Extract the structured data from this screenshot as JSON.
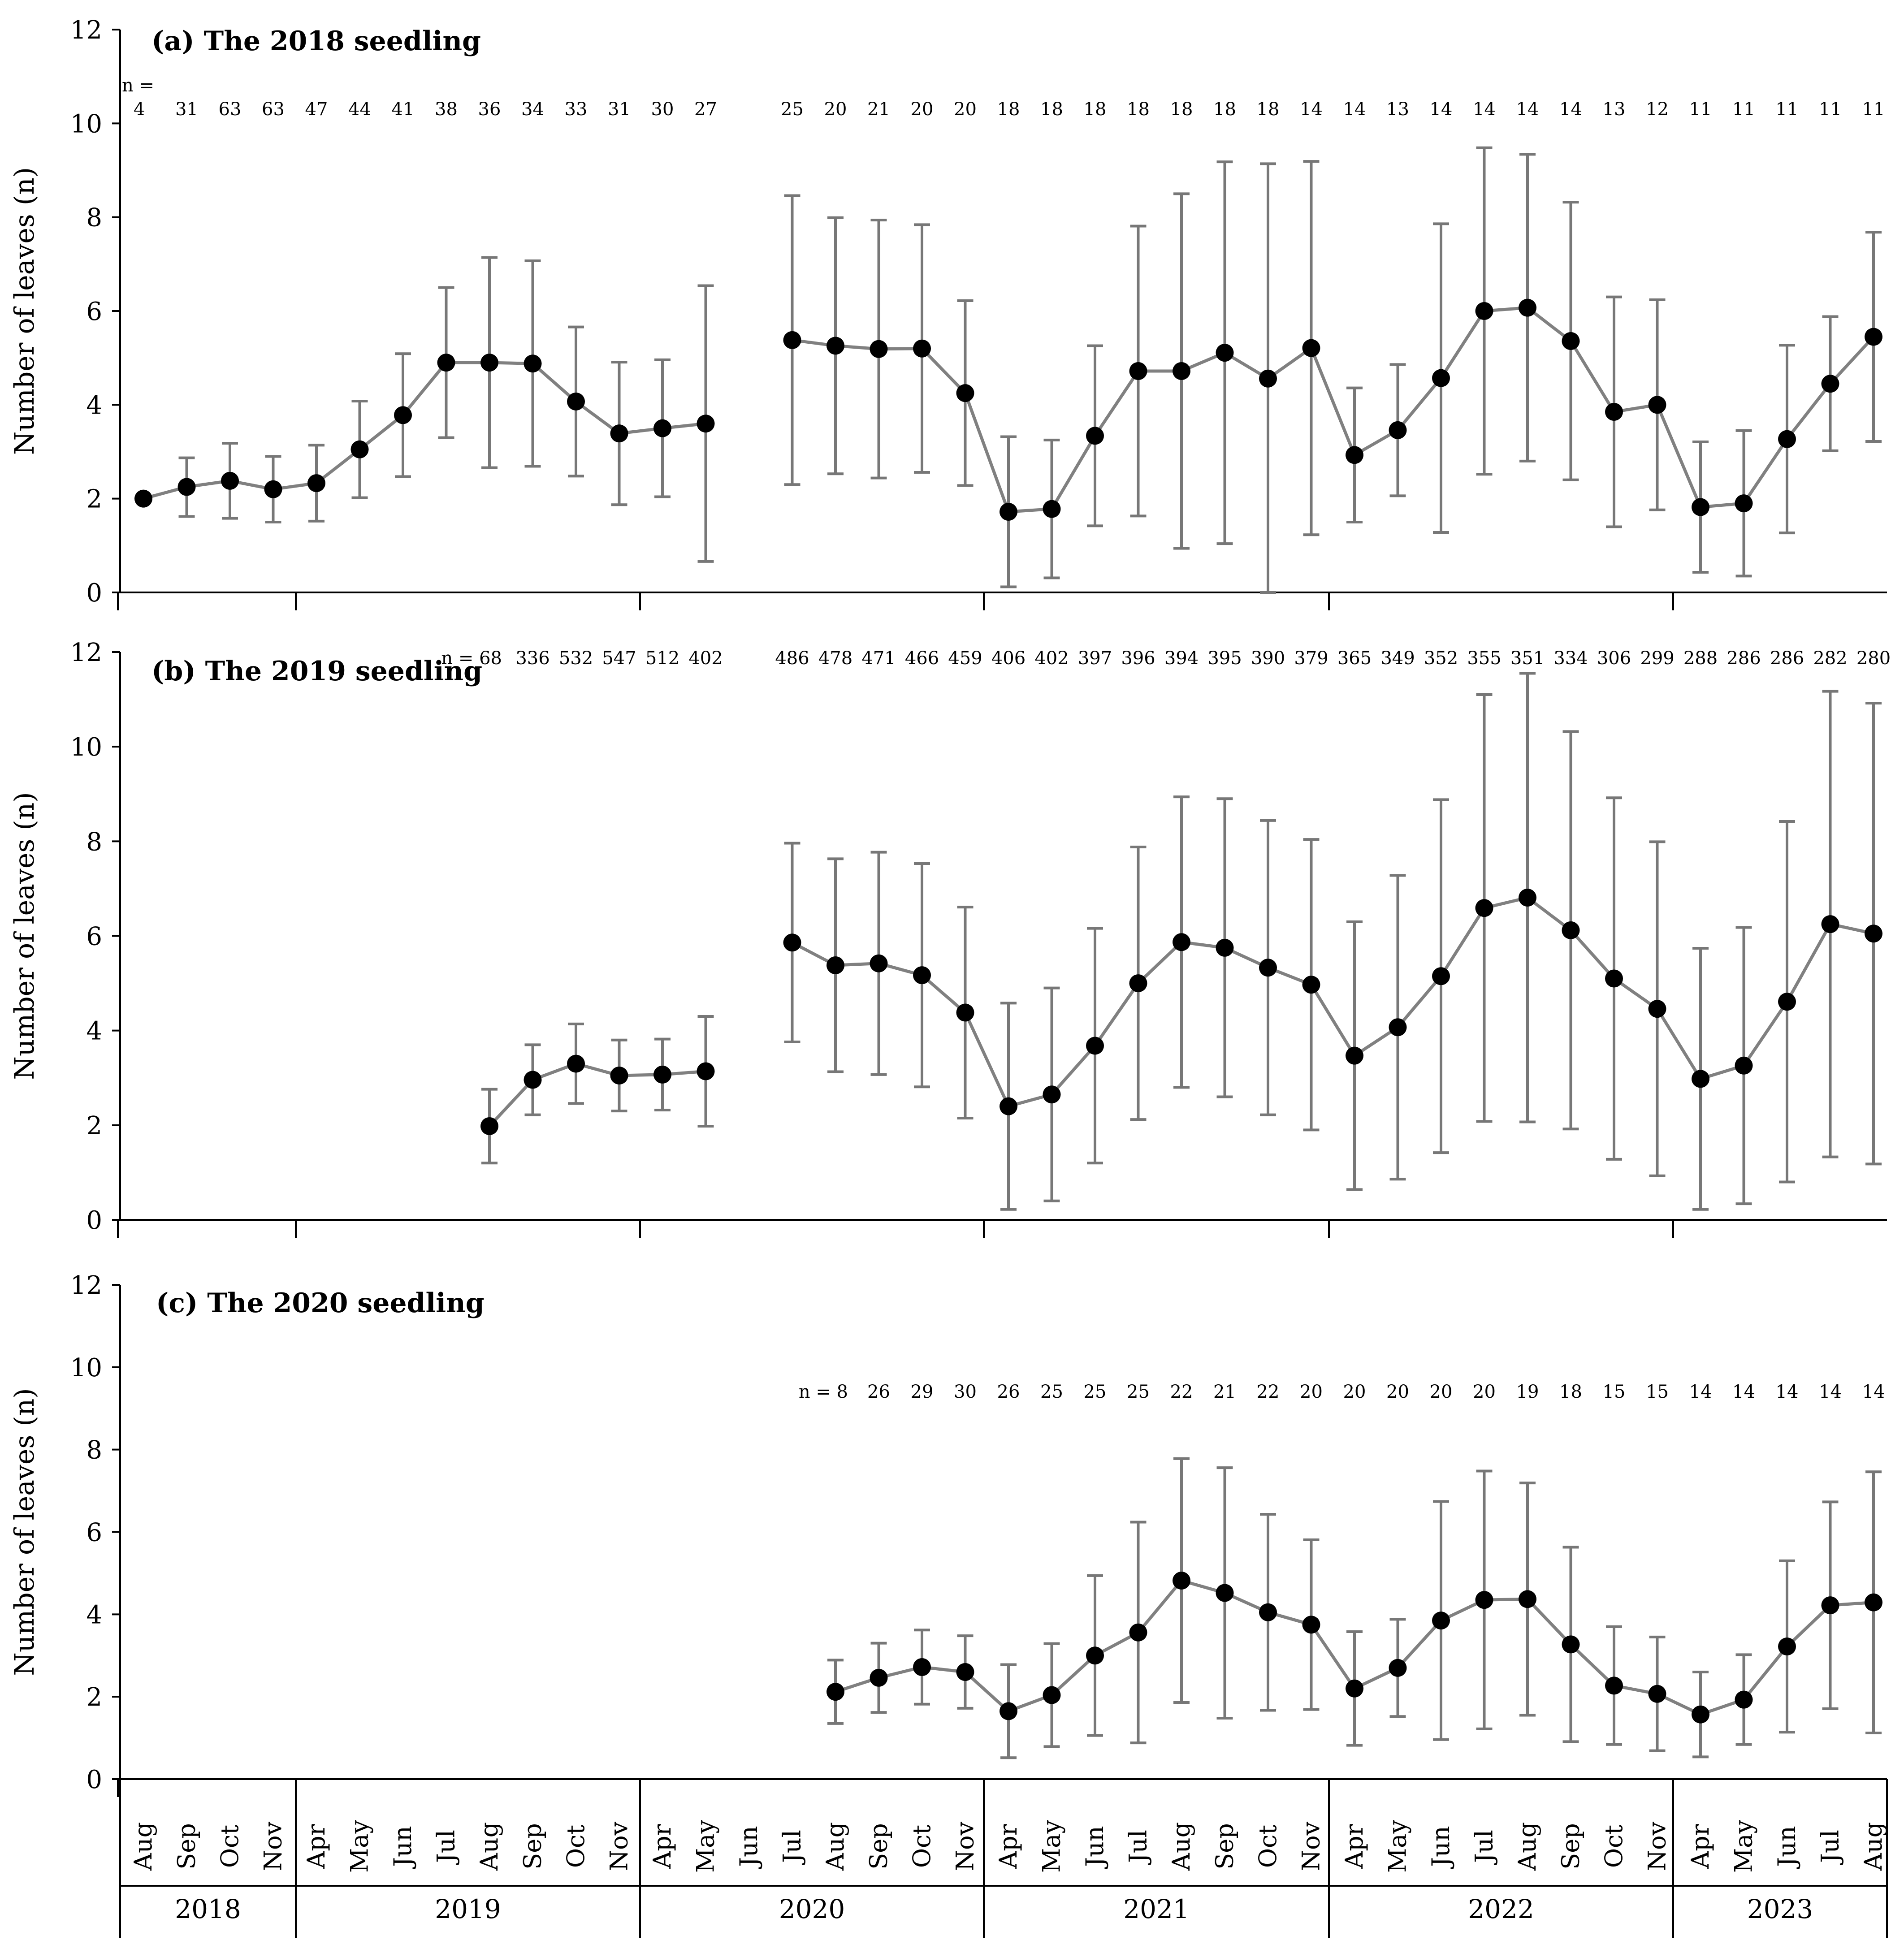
{
  "chart_data": {
    "type": "line",
    "ylabel": "Number of leaves (n)",
    "ylim": [
      0,
      12
    ],
    "yticks": [
      0,
      2,
      4,
      6,
      8,
      10,
      12
    ],
    "x_axis": {
      "months": [
        "Aug",
        "Sep",
        "Oct",
        "Nov",
        "Apr",
        "May",
        "Jun",
        "Jul",
        "Aug",
        "Sep",
        "Oct",
        "Nov",
        "Apr",
        "May",
        "Jun",
        "Jul",
        "Aug",
        "Sep",
        "Oct",
        "Nov",
        "Apr",
        "May",
        "Jun",
        "Jul",
        "Aug",
        "Sep",
        "Oct",
        "Nov",
        "Apr",
        "May",
        "Jun",
        "Jul",
        "Aug",
        "Sep",
        "Oct",
        "Nov",
        "Apr",
        "May",
        "Jun",
        "Jul",
        "Aug"
      ],
      "years": [
        {
          "label": "2018",
          "first": 0,
          "last": 3
        },
        {
          "label": "2019",
          "first": 4,
          "last": 11
        },
        {
          "label": "2020",
          "first": 12,
          "last": 19
        },
        {
          "label": "2021",
          "first": 20,
          "last": 27
        },
        {
          "label": "2022",
          "first": 28,
          "last": 35
        },
        {
          "label": "2023",
          "first": 36,
          "last": 40
        }
      ]
    },
    "panels": [
      {
        "title": "(a) The 2018 seedling",
        "n_prefix": "n =",
        "points": [
          {
            "i": 0,
            "mean": 2.0,
            "lo": 2.0,
            "hi": 2.0,
            "n": "4"
          },
          {
            "i": 1,
            "mean": 2.25,
            "lo": 1.62,
            "hi": 2.87,
            "n": "31"
          },
          {
            "i": 2,
            "mean": 2.38,
            "lo": 1.58,
            "hi": 3.18,
            "n": "63"
          },
          {
            "i": 3,
            "mean": 2.2,
            "lo": 1.5,
            "hi": 2.9,
            "n": "63"
          },
          {
            "i": 4,
            "mean": 2.33,
            "lo": 1.52,
            "hi": 3.14,
            "n": "47"
          },
          {
            "i": 5,
            "mean": 3.05,
            "lo": 2.02,
            "hi": 4.08,
            "n": "44"
          },
          {
            "i": 6,
            "mean": 3.78,
            "lo": 2.47,
            "hi": 5.09,
            "n": "41"
          },
          {
            "i": 7,
            "mean": 4.9,
            "lo": 3.3,
            "hi": 6.5,
            "n": "38"
          },
          {
            "i": 8,
            "mean": 4.9,
            "lo": 2.66,
            "hi": 7.14,
            "n": "36"
          },
          {
            "i": 9,
            "mean": 4.88,
            "lo": 2.69,
            "hi": 7.07,
            "n": "34"
          },
          {
            "i": 10,
            "mean": 4.07,
            "lo": 2.48,
            "hi": 5.66,
            "n": "33"
          },
          {
            "i": 11,
            "mean": 3.39,
            "lo": 1.87,
            "hi": 4.91,
            "n": "31"
          },
          {
            "i": 12,
            "mean": 3.5,
            "lo": 2.04,
            "hi": 4.96,
            "n": "30"
          },
          {
            "i": 13,
            "mean": 3.6,
            "lo": 0.66,
            "hi": 6.54,
            "n": "27"
          },
          {
            "i": 15,
            "mean": 5.38,
            "lo": 2.3,
            "hi": 8.46,
            "n": "25"
          },
          {
            "i": 16,
            "mean": 5.26,
            "lo": 2.53,
            "hi": 7.99,
            "n": "20"
          },
          {
            "i": 17,
            "mean": 5.19,
            "lo": 2.44,
            "hi": 7.94,
            "n": "21"
          },
          {
            "i": 18,
            "mean": 5.2,
            "lo": 2.56,
            "hi": 7.84,
            "n": "20"
          },
          {
            "i": 19,
            "mean": 4.25,
            "lo": 2.28,
            "hi": 6.22,
            "n": "20"
          },
          {
            "i": 20,
            "mean": 1.72,
            "lo": 0.12,
            "hi": 3.32,
            "n": "18"
          },
          {
            "i": 21,
            "mean": 1.78,
            "lo": 0.31,
            "hi": 3.25,
            "n": "18"
          },
          {
            "i": 22,
            "mean": 3.34,
            "lo": 1.42,
            "hi": 5.26,
            "n": "18"
          },
          {
            "i": 23,
            "mean": 4.72,
            "lo": 1.63,
            "hi": 7.81,
            "n": "18"
          },
          {
            "i": 24,
            "mean": 4.72,
            "lo": 0.94,
            "hi": 8.5,
            "n": "18"
          },
          {
            "i": 25,
            "mean": 5.11,
            "lo": 1.04,
            "hi": 9.18,
            "n": "18"
          },
          {
            "i": 26,
            "mean": 4.56,
            "lo": 0.0,
            "hi": 9.14,
            "n": "18"
          },
          {
            "i": 27,
            "mean": 5.21,
            "lo": 1.23,
            "hi": 9.19,
            "n": "14"
          },
          {
            "i": 28,
            "mean": 2.93,
            "lo": 1.5,
            "hi": 4.36,
            "n": "14"
          },
          {
            "i": 29,
            "mean": 3.46,
            "lo": 2.06,
            "hi": 4.86,
            "n": "13"
          },
          {
            "i": 30,
            "mean": 4.57,
            "lo": 1.28,
            "hi": 7.86,
            "n": "14"
          },
          {
            "i": 31,
            "mean": 6.0,
            "lo": 2.52,
            "hi": 9.48,
            "n": "14"
          },
          {
            "i": 32,
            "mean": 6.07,
            "lo": 2.8,
            "hi": 9.34,
            "n": "14"
          },
          {
            "i": 33,
            "mean": 5.36,
            "lo": 2.4,
            "hi": 8.32,
            "n": "14"
          },
          {
            "i": 34,
            "mean": 3.85,
            "lo": 1.4,
            "hi": 6.3,
            "n": "13"
          },
          {
            "i": 35,
            "mean": 4.0,
            "lo": 1.76,
            "hi": 6.24,
            "n": "12"
          },
          {
            "i": 36,
            "mean": 1.82,
            "lo": 0.43,
            "hi": 3.21,
            "n": "11"
          },
          {
            "i": 37,
            "mean": 1.9,
            "lo": 0.35,
            "hi": 3.45,
            "n": "11"
          },
          {
            "i": 38,
            "mean": 3.27,
            "lo": 1.27,
            "hi": 5.27,
            "n": "11"
          },
          {
            "i": 39,
            "mean": 4.45,
            "lo": 3.02,
            "hi": 5.88,
            "n": "11"
          },
          {
            "i": 40,
            "mean": 5.45,
            "lo": 3.22,
            "hi": 7.68,
            "n": "11"
          }
        ]
      },
      {
        "title": "(b) The 2019 seedling",
        "n_prefix": "n =",
        "points": [
          {
            "i": 8,
            "mean": 1.98,
            "lo": 1.2,
            "hi": 2.76,
            "n": "68"
          },
          {
            "i": 9,
            "mean": 2.96,
            "lo": 2.22,
            "hi": 3.7,
            "n": "336"
          },
          {
            "i": 10,
            "mean": 3.3,
            "lo": 2.46,
            "hi": 4.14,
            "n": "532"
          },
          {
            "i": 11,
            "mean": 3.05,
            "lo": 2.3,
            "hi": 3.8,
            "n": "547"
          },
          {
            "i": 12,
            "mean": 3.07,
            "lo": 2.32,
            "hi": 3.82,
            "n": "512"
          },
          {
            "i": 13,
            "mean": 3.14,
            "lo": 1.98,
            "hi": 4.3,
            "n": "402"
          },
          {
            "i": 15,
            "mean": 5.86,
            "lo": 3.76,
            "hi": 7.96,
            "n": "486"
          },
          {
            "i": 16,
            "mean": 5.38,
            "lo": 3.13,
            "hi": 7.63,
            "n": "478"
          },
          {
            "i": 17,
            "mean": 5.42,
            "lo": 3.07,
            "hi": 7.77,
            "n": "471"
          },
          {
            "i": 18,
            "mean": 5.17,
            "lo": 2.81,
            "hi": 7.53,
            "n": "466"
          },
          {
            "i": 19,
            "mean": 4.38,
            "lo": 2.15,
            "hi": 6.61,
            "n": "459"
          },
          {
            "i": 20,
            "mean": 2.4,
            "lo": 0.22,
            "hi": 4.58,
            "n": "406"
          },
          {
            "i": 21,
            "mean": 2.65,
            "lo": 0.4,
            "hi": 4.9,
            "n": "402"
          },
          {
            "i": 22,
            "mean": 3.68,
            "lo": 1.2,
            "hi": 6.16,
            "n": "397"
          },
          {
            "i": 23,
            "mean": 5.0,
            "lo": 2.12,
            "hi": 7.88,
            "n": "396"
          },
          {
            "i": 24,
            "mean": 5.87,
            "lo": 2.8,
            "hi": 8.94,
            "n": "394"
          },
          {
            "i": 25,
            "mean": 5.75,
            "lo": 2.6,
            "hi": 8.9,
            "n": "395"
          },
          {
            "i": 26,
            "mean": 5.33,
            "lo": 2.22,
            "hi": 8.44,
            "n": "390"
          },
          {
            "i": 27,
            "mean": 4.97,
            "lo": 1.9,
            "hi": 8.04,
            "n": "379"
          },
          {
            "i": 28,
            "mean": 3.47,
            "lo": 0.64,
            "hi": 6.3,
            "n": "365"
          },
          {
            "i": 29,
            "mean": 4.07,
            "lo": 0.86,
            "hi": 7.28,
            "n": "349"
          },
          {
            "i": 30,
            "mean": 5.15,
            "lo": 1.42,
            "hi": 8.88,
            "n": "352"
          },
          {
            "i": 31,
            "mean": 6.59,
            "lo": 2.08,
            "hi": 11.1,
            "n": "355"
          },
          {
            "i": 32,
            "mean": 6.81,
            "lo": 2.07,
            "hi": 11.55,
            "n": "351"
          },
          {
            "i": 33,
            "mean": 6.12,
            "lo": 1.92,
            "hi": 10.32,
            "n": "334"
          },
          {
            "i": 34,
            "mean": 5.1,
            "lo": 1.28,
            "hi": 8.92,
            "n": "306"
          },
          {
            "i": 35,
            "mean": 4.46,
            "lo": 0.93,
            "hi": 7.99,
            "n": "299"
          },
          {
            "i": 36,
            "mean": 2.98,
            "lo": 0.22,
            "hi": 5.74,
            "n": "288"
          },
          {
            "i": 37,
            "mean": 3.26,
            "lo": 0.34,
            "hi": 6.18,
            "n": "286"
          },
          {
            "i": 38,
            "mean": 4.61,
            "lo": 0.8,
            "hi": 8.42,
            "n": "286"
          },
          {
            "i": 39,
            "mean": 6.25,
            "lo": 1.33,
            "hi": 11.17,
            "n": "282"
          },
          {
            "i": 40,
            "mean": 6.05,
            "lo": 1.18,
            "hi": 10.92,
            "n": "280"
          }
        ]
      },
      {
        "title": "(c) The 2020 seedling",
        "n_prefix": "n =",
        "points": [
          {
            "i": 16,
            "mean": 2.12,
            "lo": 1.35,
            "hi": 2.89,
            "n": "8"
          },
          {
            "i": 17,
            "mean": 2.46,
            "lo": 1.62,
            "hi": 3.3,
            "n": "26"
          },
          {
            "i": 18,
            "mean": 2.72,
            "lo": 1.82,
            "hi": 3.62,
            "n": "29"
          },
          {
            "i": 19,
            "mean": 2.6,
            "lo": 1.72,
            "hi": 3.48,
            "n": "30"
          },
          {
            "i": 20,
            "mean": 1.65,
            "lo": 0.52,
            "hi": 2.78,
            "n": "26"
          },
          {
            "i": 21,
            "mean": 2.04,
            "lo": 0.79,
            "hi": 3.29,
            "n": "25"
          },
          {
            "i": 22,
            "mean": 3.0,
            "lo": 1.06,
            "hi": 4.94,
            "n": "25"
          },
          {
            "i": 23,
            "mean": 3.56,
            "lo": 0.88,
            "hi": 6.24,
            "n": "25"
          },
          {
            "i": 24,
            "mean": 4.82,
            "lo": 1.86,
            "hi": 7.78,
            "n": "22"
          },
          {
            "i": 25,
            "mean": 4.52,
            "lo": 1.48,
            "hi": 7.56,
            "n": "21"
          },
          {
            "i": 26,
            "mean": 4.05,
            "lo": 1.67,
            "hi": 6.43,
            "n": "22"
          },
          {
            "i": 27,
            "mean": 3.75,
            "lo": 1.69,
            "hi": 5.81,
            "n": "20"
          },
          {
            "i": 28,
            "mean": 2.2,
            "lo": 0.82,
            "hi": 3.58,
            "n": "20"
          },
          {
            "i": 29,
            "mean": 2.7,
            "lo": 1.52,
            "hi": 3.88,
            "n": "20"
          },
          {
            "i": 30,
            "mean": 3.85,
            "lo": 0.96,
            "hi": 6.74,
            "n": "20"
          },
          {
            "i": 31,
            "mean": 4.35,
            "lo": 1.22,
            "hi": 7.48,
            "n": "20"
          },
          {
            "i": 32,
            "mean": 4.37,
            "lo": 1.55,
            "hi": 7.19,
            "n": "19"
          },
          {
            "i": 33,
            "mean": 3.27,
            "lo": 0.91,
            "hi": 5.63,
            "n": "18"
          },
          {
            "i": 34,
            "mean": 2.27,
            "lo": 0.84,
            "hi": 3.7,
            "n": "15"
          },
          {
            "i": 35,
            "mean": 2.07,
            "lo": 0.69,
            "hi": 3.45,
            "n": "15"
          },
          {
            "i": 36,
            "mean": 1.57,
            "lo": 0.54,
            "hi": 2.6,
            "n": "14"
          },
          {
            "i": 37,
            "mean": 1.93,
            "lo": 0.84,
            "hi": 3.02,
            "n": "14"
          },
          {
            "i": 38,
            "mean": 3.22,
            "lo": 1.14,
            "hi": 5.3,
            "n": "14"
          },
          {
            "i": 39,
            "mean": 4.22,
            "lo": 1.71,
            "hi": 6.73,
            "n": "14"
          },
          {
            "i": 40,
            "mean": 4.29,
            "lo": 1.12,
            "hi": 7.46,
            "n": "14"
          }
        ]
      }
    ]
  }
}
